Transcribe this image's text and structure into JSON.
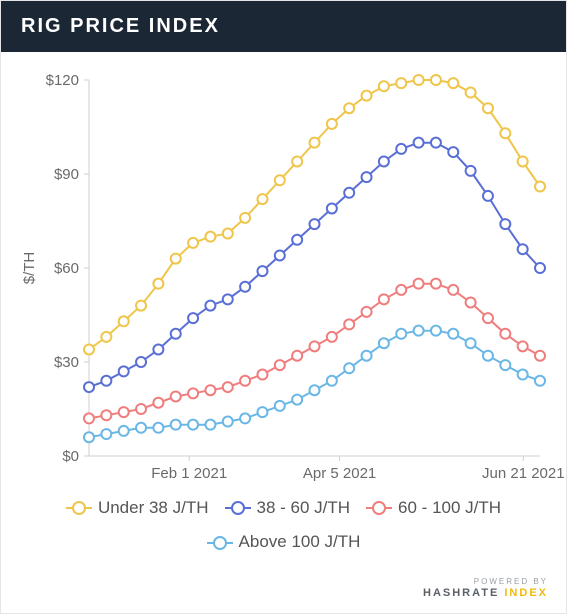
{
  "header": {
    "title": "RIG PRICE INDEX"
  },
  "chart": {
    "type": "line",
    "ylabel": "$/TH",
    "label_fontsize": 15,
    "ylim": [
      0,
      120
    ],
    "yticks": [
      0,
      30,
      60,
      90,
      120
    ],
    "ytick_labels": [
      "$0",
      "$30",
      "$60",
      "$90",
      "$120"
    ],
    "xlim": [
      0,
      27
    ],
    "xticks": [
      6,
      15,
      26
    ],
    "xtick_labels": [
      "Feb 1 2021",
      "Apr 5 2021",
      "Jun 21 2021"
    ],
    "background_color": "#ffffff",
    "grid": false,
    "axis_color": "#cfcfcf",
    "text_color": "#6a6a6a",
    "marker_style": "circle-open",
    "marker_size": 5,
    "line_width": 2,
    "series": [
      {
        "name": "Under 38 J/TH",
        "color": "#efc54a",
        "y": [
          34,
          38,
          43,
          48,
          55,
          63,
          68,
          70,
          71,
          76,
          82,
          88,
          94,
          100,
          106,
          111,
          115,
          118,
          119,
          120,
          120,
          119,
          116,
          111,
          103,
          94,
          86
        ]
      },
      {
        "name": "38 - 60 J/TH",
        "color": "#5a6fd6",
        "y": [
          22,
          24,
          27,
          30,
          34,
          39,
          44,
          48,
          50,
          54,
          59,
          64,
          69,
          74,
          79,
          84,
          89,
          94,
          98,
          100,
          100,
          97,
          91,
          83,
          74,
          66,
          60
        ]
      },
      {
        "name": "60 - 100 J/TH",
        "color": "#f07d7d",
        "y": [
          12,
          13,
          14,
          15,
          17,
          19,
          20,
          21,
          22,
          24,
          26,
          29,
          32,
          35,
          38,
          42,
          46,
          50,
          53,
          55,
          55,
          53,
          49,
          44,
          39,
          35,
          32
        ]
      },
      {
        "name": "Above 100 J/TH",
        "color": "#6ab7e6",
        "y": [
          6,
          7,
          8,
          9,
          9,
          10,
          10,
          10,
          11,
          12,
          14,
          16,
          18,
          21,
          24,
          28,
          32,
          36,
          39,
          40,
          40,
          39,
          36,
          32,
          29,
          26,
          24
        ]
      }
    ]
  },
  "legend": {
    "items": [
      {
        "label": "Under 38 J/TH",
        "color": "#efc54a"
      },
      {
        "label": "38 - 60 J/TH",
        "color": "#5a6fd6"
      },
      {
        "label": "60 - 100 J/TH",
        "color": "#f07d7d"
      },
      {
        "label": "Above 100 J/TH",
        "color": "#6ab7e6"
      }
    ]
  },
  "footer": {
    "powered_by": "POWERED BY",
    "brand1": "HASHRATE",
    "brand2": "INDEX"
  }
}
